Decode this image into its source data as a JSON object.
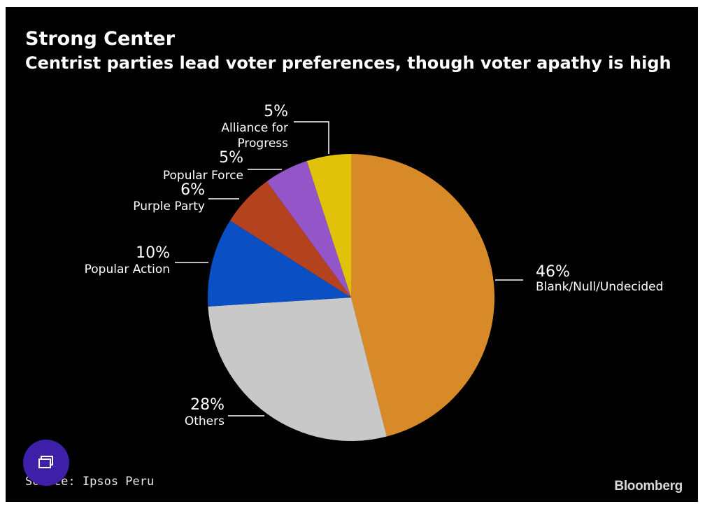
{
  "chart_data": {
    "type": "pie",
    "title": "Strong Center",
    "subtitle": "Centrist parties lead voter preferences, though voter apathy is high",
    "slices": [
      {
        "label": "Blank/Null/Undecided",
        "value_label": "46%",
        "value": 46,
        "color": "#d98a28"
      },
      {
        "label": "Others",
        "value_label": "28%",
        "value": 28,
        "color": "#c8c8c8"
      },
      {
        "label": "Popular Action",
        "value_label": "10%",
        "value": 10,
        "color": "#0a4fc4"
      },
      {
        "label": "Purple Party",
        "value_label": "6%",
        "value": 6,
        "color": "#b5421f"
      },
      {
        "label": "Popular Force",
        "value_label": "5%",
        "value": 5,
        "color": "#9355c8"
      },
      {
        "label": "Alliance for\nProgress",
        "value_label": "5%",
        "value": 5,
        "color": "#e0c20a"
      }
    ],
    "source": "Source: Ipsos Peru"
  },
  "branding": {
    "logo_text": "Bloomberg"
  },
  "overlay": {
    "icon": "windows-icon"
  }
}
